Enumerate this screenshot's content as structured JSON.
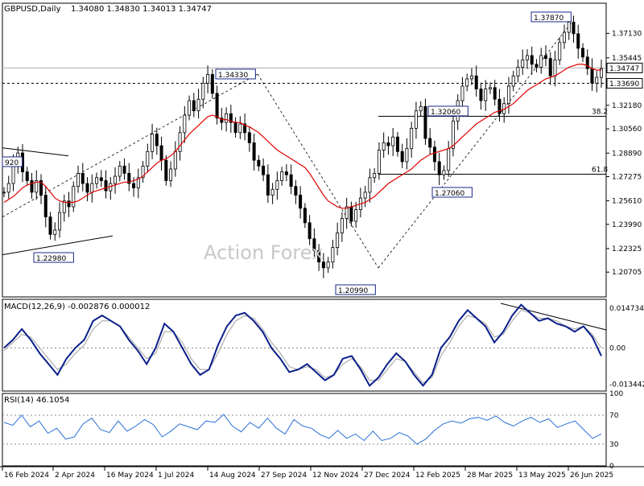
{
  "header": {
    "symbol_tf": "GBPUSD,Daily",
    "ohlc": "1.34080 1.34830 1.34013 1.34747"
  },
  "watermark": "Action Forex",
  "colors": {
    "price": "#000000",
    "ma": "#e00000",
    "macd": "#0a1f8a",
    "signal": "#a0a0a0",
    "rsi": "#2a6fd6",
    "guide": "#000000"
  },
  "chart_data": [
    {
      "type": "candlestick",
      "name": "price",
      "ylim": [
        1.19,
        1.392
      ],
      "y_ticks": [
        "1.37130",
        "1.35445",
        "1.33690",
        "1.32180",
        "1.30560",
        "1.28890",
        "1.27275",
        "1.25610",
        "1.23990",
        "1.22325",
        "1.20705"
      ],
      "x_ticks": [
        "16 Feb 2024",
        "2 Apr 2024",
        "16 May 2024",
        "1 Jul 2024",
        "14 Aug 2024",
        "27 Sep 2024",
        "12 Nov 2024",
        "27 Dec 2024",
        "12 Feb 2025",
        "28 Mar 2025",
        "13 May 2025",
        "26 Jun 2025"
      ],
      "price_path": [
        1.262,
        1.268,
        1.281,
        1.289,
        1.276,
        1.27,
        1.262,
        1.27,
        1.26,
        1.245,
        1.233,
        1.236,
        1.248,
        1.256,
        1.252,
        1.266,
        1.275,
        1.268,
        1.262,
        1.268,
        1.272,
        1.27,
        1.263,
        1.268,
        1.273,
        1.28,
        1.275,
        1.268,
        1.265,
        1.272,
        1.28,
        1.29,
        1.302,
        1.294,
        1.284,
        1.27,
        1.278,
        1.29,
        1.303,
        1.315,
        1.325,
        1.318,
        1.326,
        1.337,
        1.343,
        1.33,
        1.313,
        1.31,
        1.316,
        1.31,
        1.303,
        1.309,
        1.303,
        1.296,
        1.284,
        1.28,
        1.274,
        1.26,
        1.264,
        1.27,
        1.276,
        1.274,
        1.266,
        1.26,
        1.251,
        1.241,
        1.23,
        1.222,
        1.214,
        1.21,
        1.214,
        1.224,
        1.234,
        1.244,
        1.252,
        1.242,
        1.25,
        1.258,
        1.262,
        1.272,
        1.275,
        1.291,
        1.296,
        1.294,
        1.3,
        1.29,
        1.283,
        1.292,
        1.306,
        1.318,
        1.321,
        1.299,
        1.293,
        1.283,
        1.274,
        1.277,
        1.292,
        1.311,
        1.325,
        1.335,
        1.34,
        1.342,
        1.333,
        1.325,
        1.333,
        1.334,
        1.326,
        1.316,
        1.323,
        1.335,
        1.342,
        1.348,
        1.353,
        1.356,
        1.35,
        1.348,
        1.356,
        1.354,
        1.342,
        1.353,
        1.365,
        1.372,
        1.379,
        1.371,
        1.361,
        1.355,
        1.347,
        1.337,
        1.341,
        1.347
      ],
      "ma_path": [
        1.255,
        1.257,
        1.259,
        1.262,
        1.265,
        1.267,
        1.268,
        1.269,
        1.269,
        1.266,
        1.262,
        1.258,
        1.256,
        1.255,
        1.255,
        1.255,
        1.256,
        1.258,
        1.26,
        1.262,
        1.263,
        1.264,
        1.265,
        1.266,
        1.267,
        1.268,
        1.269,
        1.269,
        1.27,
        1.271,
        1.273,
        1.276,
        1.279,
        1.282,
        1.284,
        1.285,
        1.287,
        1.29,
        1.294,
        1.298,
        1.302,
        1.305,
        1.308,
        1.311,
        1.314,
        1.315,
        1.314,
        1.312,
        1.312,
        1.311,
        1.31,
        1.31,
        1.308,
        1.307,
        1.305,
        1.303,
        1.3,
        1.297,
        1.294,
        1.291,
        1.289,
        1.287,
        1.285,
        1.283,
        1.281,
        1.279,
        1.275,
        1.27,
        1.265,
        1.26,
        1.256,
        1.254,
        1.252,
        1.251,
        1.251,
        1.252,
        1.253,
        1.254,
        1.255,
        1.257,
        1.259,
        1.262,
        1.265,
        1.268,
        1.27,
        1.272,
        1.274,
        1.276,
        1.278,
        1.281,
        1.284,
        1.286,
        1.288,
        1.289,
        1.29,
        1.291,
        1.292,
        1.294,
        1.297,
        1.3,
        1.303,
        1.306,
        1.309,
        1.311,
        1.313,
        1.315,
        1.317,
        1.318,
        1.319,
        1.321,
        1.323,
        1.326,
        1.329,
        1.332,
        1.334,
        1.336,
        1.338,
        1.34,
        1.341,
        1.342,
        1.344,
        1.346,
        1.348,
        1.349,
        1.35,
        1.35,
        1.349,
        1.347,
        1.346,
        1.346
      ],
      "price_labels": [
        {
          "text": "1.37870",
          "x": 100.7,
          "y": 1.3787
        },
        {
          "text": "1.34330",
          "x": 37.7,
          "y": 1.3433
        },
        {
          "text": "1.32060",
          "x": 66.4,
          "y": 1.3206
        },
        {
          "text": "1.27060",
          "x": 66.4,
          "y": 1.2706
        },
        {
          "text": "1.20990",
          "x": 53.4,
          "y": 1.2099
        },
        {
          "text": "1.22980",
          "x": 6.8,
          "y": 1.2298
        },
        {
          "text": "920",
          "x": 0.0,
          "y": 1.292
        }
      ],
      "current_price": "1.34747",
      "level_line": "1.33690",
      "fib_labels": [
        "38.2",
        "61.8"
      ]
    },
    {
      "type": "line",
      "name": "MACD(12,26,9) -0.002876 0.000012",
      "y_ticks": [
        "0.014734",
        "0.00",
        "-0.013442"
      ],
      "macd_path": [
        0.0,
        0.003,
        0.007,
        0.003,
        -0.002,
        -0.006,
        -0.01,
        -0.004,
        0.0,
        0.003,
        0.01,
        0.012,
        0.01,
        0.008,
        0.003,
        -0.001,
        -0.006,
        0.0,
        0.009,
        0.006,
        0.0,
        -0.006,
        -0.01,
        -0.008,
        0.001,
        0.008,
        0.012,
        0.013,
        0.01,
        0.006,
        0.0,
        -0.004,
        -0.009,
        -0.008,
        -0.006,
        -0.009,
        -0.012,
        -0.01,
        -0.004,
        -0.003,
        -0.008,
        -0.014,
        -0.011,
        -0.006,
        -0.002,
        -0.005,
        -0.01,
        -0.014,
        -0.01,
        0.0,
        0.004,
        0.01,
        0.014,
        0.011,
        0.008,
        0.002,
        0.006,
        0.012,
        0.016,
        0.013,
        0.01,
        0.011,
        0.009,
        0.008,
        0.006,
        0.008,
        0.004,
        -0.003
      ],
      "signal_path": [
        -0.001,
        0.002,
        0.005,
        0.004,
        0.0,
        -0.004,
        -0.008,
        -0.006,
        -0.002,
        0.001,
        0.007,
        0.01,
        0.01,
        0.008,
        0.004,
        0.0,
        -0.004,
        -0.002,
        0.006,
        0.006,
        0.002,
        -0.004,
        -0.008,
        -0.008,
        -0.002,
        0.005,
        0.01,
        0.012,
        0.011,
        0.007,
        0.002,
        -0.002,
        -0.007,
        -0.008,
        -0.007,
        -0.008,
        -0.011,
        -0.01,
        -0.006,
        -0.004,
        -0.007,
        -0.012,
        -0.012,
        -0.008,
        -0.004,
        -0.005,
        -0.009,
        -0.013,
        -0.011,
        -0.003,
        0.002,
        0.008,
        0.012,
        0.011,
        0.009,
        0.004,
        0.005,
        0.01,
        0.014,
        0.013,
        0.011,
        0.011,
        0.01,
        0.008,
        0.007,
        0.008,
        0.005,
        0.0
      ]
    },
    {
      "type": "line",
      "name": "RSI(14) 46.1054",
      "y_ticks": [
        "100",
        "70",
        "30",
        "0"
      ],
      "rsi_path": [
        60,
        56,
        70,
        54,
        62,
        45,
        52,
        37,
        40,
        58,
        66,
        50,
        46,
        62,
        48,
        55,
        64,
        57,
        40,
        48,
        58,
        54,
        50,
        62,
        60,
        71,
        55,
        47,
        60,
        52,
        66,
        52,
        44,
        64,
        55,
        52,
        43,
        38,
        49,
        38,
        44,
        35,
        48,
        35,
        38,
        46,
        41,
        30,
        37,
        49,
        58,
        62,
        59,
        65,
        67,
        63,
        69,
        60,
        55,
        62,
        67,
        60,
        65,
        53,
        58,
        62,
        50,
        38,
        44
      ]
    }
  ]
}
